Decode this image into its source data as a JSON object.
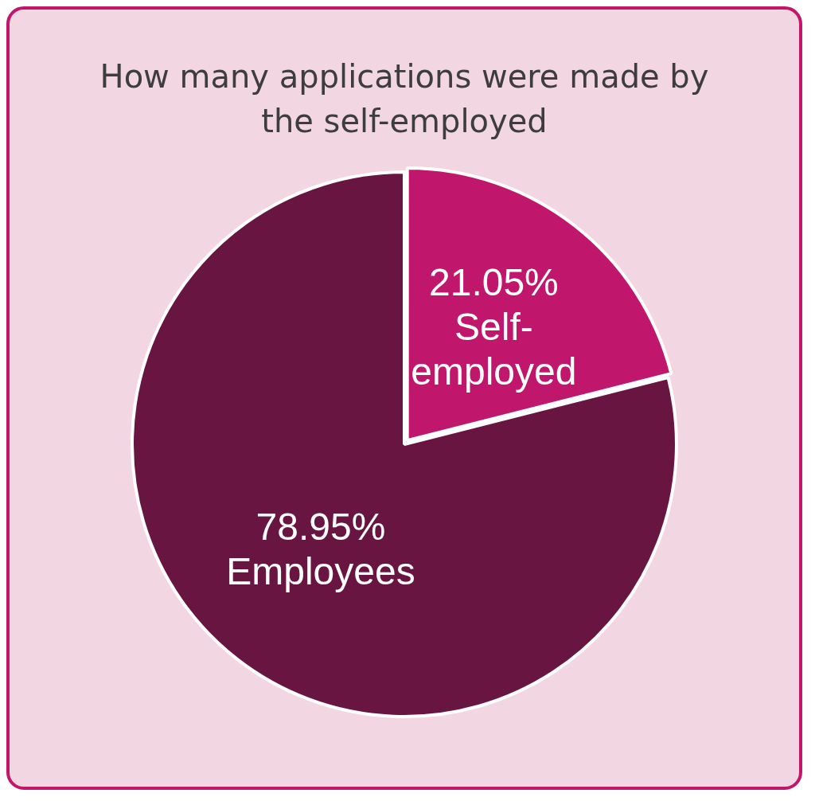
{
  "chart_data": {
    "type": "pie",
    "title": "How many applications were made by the self-employed",
    "categories": [
      "Self-employed",
      "Employees"
    ],
    "values": [
      21.05,
      78.95
    ],
    "colors": [
      "#c0166c",
      "#681641"
    ],
    "value_labels": [
      "21.05%",
      "78.95%"
    ],
    "legend": false
  }
}
